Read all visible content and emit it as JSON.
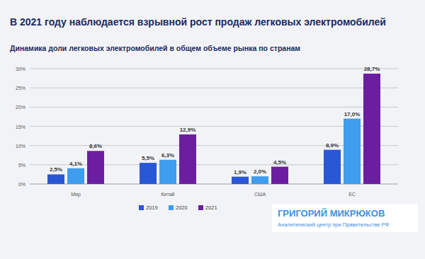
{
  "chart_data": {
    "type": "bar",
    "title": "В 2021 году наблюдается взрывной рост продаж легковых электромобилей",
    "subtitle": "Динамика доли легковых электромобилей в общем объеме рынка по странам",
    "categories": [
      "Мир",
      "Китай",
      "США",
      "ЕС"
    ],
    "series": [
      {
        "name": "2019",
        "color": "#2a57d6",
        "values": [
          2.5,
          5.5,
          1.9,
          8.9
        ],
        "value_labels": [
          "2,5%",
          "5,5%",
          "1,9%",
          "8,9%"
        ]
      },
      {
        "name": "2020",
        "color": "#3f9def",
        "values": [
          4.1,
          6.3,
          2.0,
          17.0
        ],
        "value_labels": [
          "4,1%",
          "6,3%",
          "2,0%",
          "17,0%"
        ]
      },
      {
        "name": "2021",
        "color": "#6b1fa0",
        "values": [
          8.6,
          12.9,
          4.5,
          28.7
        ],
        "value_labels": [
          "8,6%",
          "12,9%",
          "4,5%",
          "28,7%"
        ]
      }
    ],
    "ylim": [
      0,
      30
    ],
    "yticks": [
      {
        "value": 0,
        "label": "0%"
      },
      {
        "value": 5,
        "label": "5%"
      },
      {
        "value": 10,
        "label": "10%"
      },
      {
        "value": 15,
        "label": "15%"
      },
      {
        "value": 20,
        "label": "20%"
      },
      {
        "value": 25,
        "label": "25%"
      },
      {
        "value": 30,
        "label": "30%"
      }
    ],
    "grid": true,
    "legend": "bottom",
    "data_labels": true,
    "annotations": [
      "ГРИГОРИЙ МИКРЮКОВ",
      "Аналитический центр при Правительстве РФ"
    ]
  }
}
